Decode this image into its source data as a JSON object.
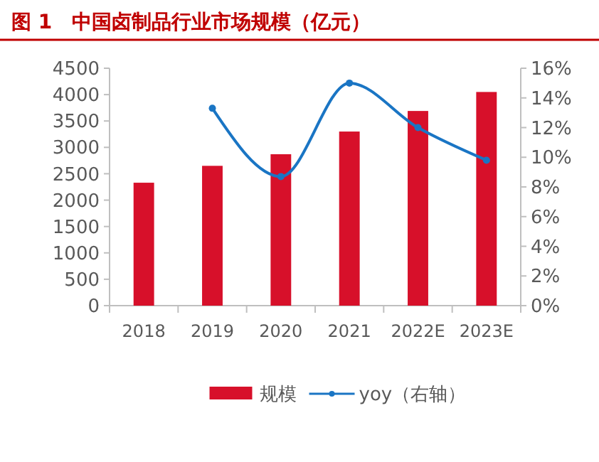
{
  "chart_data": {
    "type": "bar",
    "title": "图 1　中国卤制品行业市场规模（亿元）",
    "categories": [
      "2018",
      "2019",
      "2020",
      "2021",
      "2022E",
      "2023E"
    ],
    "series": [
      {
        "name": "规模",
        "color": "#d7102a",
        "values": [
          2330,
          2650,
          2870,
          3300,
          3690,
          4050
        ]
      },
      {
        "name": "yoy（右轴）",
        "type": "line",
        "axis": "y2",
        "color": "#1a75c4",
        "values": [
          null,
          13.3,
          8.7,
          15.0,
          12.0,
          9.8
        ]
      }
    ],
    "ylim": [
      0,
      4500
    ],
    "yticks": [
      0,
      500,
      1000,
      1500,
      2000,
      2500,
      3000,
      3500,
      4000,
      4500
    ],
    "y2lim": [
      0,
      16
    ],
    "y2ticks": [
      {
        "value": 0,
        "label": "0%"
      },
      {
        "value": 2,
        "label": "2%"
      },
      {
        "value": 4,
        "label": "4%"
      },
      {
        "value": 6,
        "label": "6%"
      },
      {
        "value": 8,
        "label": "8%"
      },
      {
        "value": 10,
        "label": "10%"
      },
      {
        "value": 12,
        "label": "12%"
      },
      {
        "value": 14,
        "label": "14%"
      },
      {
        "value": 16,
        "label": "16%"
      }
    ],
    "grid": false,
    "legend": "bottom",
    "marker": "circle",
    "line_style": "solid"
  }
}
